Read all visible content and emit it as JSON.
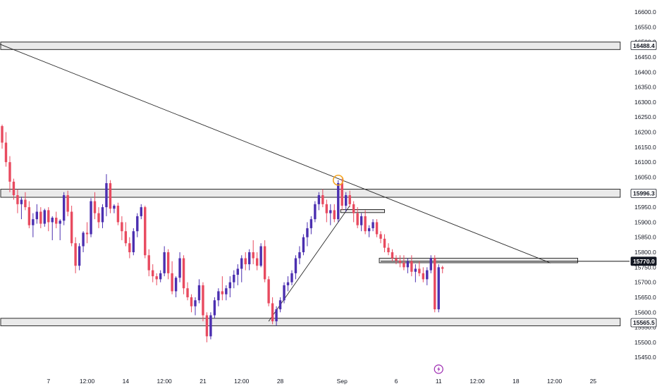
{
  "chart_data": {
    "type": "candlestick",
    "y_axis": {
      "range": [
        15420,
        16640
      ],
      "ticks": [
        "16600.0",
        "16550.0",
        "16500.0",
        "16450.0",
        "16400.0",
        "16350.0",
        "16300.0",
        "16250.0",
        "16200.0",
        "16150.0",
        "16100.0",
        "16050.0",
        "16000.0",
        "15950.0",
        "15900.0",
        "15850.0",
        "15800.0",
        "15750.0",
        "15700.0",
        "15650.0",
        "15600.0",
        "15550.0",
        "15500.0",
        "15450.0"
      ]
    },
    "x_axis": {
      "labels": [
        {
          "text": "7",
          "i": 12
        },
        {
          "text": "12:00",
          "i": 22
        },
        {
          "text": "14",
          "i": 32
        },
        {
          "text": "12:00",
          "i": 42
        },
        {
          "text": "21",
          "i": 52
        },
        {
          "text": "12:00",
          "i": 62
        },
        {
          "text": "28",
          "i": 72
        },
        {
          "text": "Sep",
          "i": 88
        },
        {
          "text": "6",
          "i": 102
        },
        {
          "text": "11",
          "i": 113
        },
        {
          "text": "12:00",
          "i": 123
        },
        {
          "text": "18",
          "i": 133
        },
        {
          "text": "12:00",
          "i": 143
        },
        {
          "text": "25",
          "i": 153
        }
      ]
    },
    "price_tags": [
      {
        "label": "16488.4",
        "value": 16488.4,
        "style": "light"
      },
      {
        "label": "15996.3",
        "value": 15996.3,
        "style": "light"
      },
      {
        "label": "15770.0",
        "value": 15770.0,
        "style": "dark"
      },
      {
        "label": "15565.5",
        "value": 15565.5,
        "style": "light"
      }
    ],
    "zones": [
      {
        "name": "zone-16488",
        "top": 16500,
        "bottom": 16475,
        "i_start": 0,
        "i_end": 160
      },
      {
        "name": "zone-15996",
        "top": 16010,
        "bottom": 15983,
        "i_start": 0,
        "i_end": 160
      },
      {
        "name": "zone-15570",
        "top": 15580,
        "bottom": 15555,
        "i_start": 0,
        "i_end": 160
      },
      {
        "name": "zone-15770",
        "top": 15780,
        "bottom": 15765,
        "i_start": 98,
        "i_end": 149
      },
      {
        "name": "zone-15940",
        "top": 15942,
        "bottom": 15932,
        "i_start": 88,
        "i_end": 99
      }
    ],
    "trendlines": [
      {
        "name": "downtrend-line",
        "from": [
          -1,
          16495
        ],
        "to": [
          142,
          15764
        ]
      },
      {
        "name": "rising-line",
        "from": [
          69,
          15570
        ],
        "to": [
          90,
          15955
        ]
      }
    ],
    "hline": {
      "value": 15770.0,
      "i_start": 98
    },
    "marker": {
      "i": 87,
      "value": 16040
    },
    "candles": [
      [
        16220,
        16225,
        16145,
        16165
      ],
      [
        16165,
        16200,
        16085,
        16100
      ],
      [
        16100,
        16120,
        16000,
        16035
      ],
      [
        16035,
        16045,
        15975,
        15990
      ],
      [
        15990,
        16010,
        15930,
        15960
      ],
      [
        15960,
        15985,
        15910,
        15975
      ],
      [
        15975,
        16000,
        15940,
        15950
      ],
      [
        15950,
        15970,
        15880,
        15890
      ],
      [
        15890,
        15930,
        15850,
        15910
      ],
      [
        15910,
        15960,
        15895,
        15935
      ],
      [
        15935,
        15950,
        15880,
        15895
      ],
      [
        15895,
        15945,
        15885,
        15940
      ],
      [
        15940,
        15950,
        15870,
        15900
      ],
      [
        15900,
        15920,
        15840,
        15915
      ],
      [
        15915,
        15935,
        15880,
        15895
      ],
      [
        15895,
        15910,
        15840,
        15905
      ],
      [
        15905,
        16000,
        15890,
        15990
      ],
      [
        15990,
        16005,
        15920,
        15935
      ],
      [
        15935,
        15955,
        15820,
        15830
      ],
      [
        15830,
        15850,
        15730,
        15755
      ],
      [
        15755,
        15830,
        15740,
        15820
      ],
      [
        15820,
        15870,
        15800,
        15865
      ],
      [
        15865,
        15900,
        15830,
        15860
      ],
      [
        15860,
        15980,
        15850,
        15970
      ],
      [
        15970,
        16000,
        15910,
        15930
      ],
      [
        15930,
        15950,
        15880,
        15900
      ],
      [
        15900,
        15960,
        15880,
        15950
      ],
      [
        15950,
        16060,
        15920,
        16030
      ],
      [
        16030,
        16040,
        15930,
        15945
      ],
      [
        15945,
        15960,
        15930,
        15955
      ],
      [
        15955,
        15965,
        15890,
        15900
      ],
      [
        15900,
        15920,
        15840,
        15870
      ],
      [
        15870,
        15900,
        15820,
        15830
      ],
      [
        15830,
        15850,
        15780,
        15800
      ],
      [
        15800,
        15880,
        15790,
        15870
      ],
      [
        15870,
        15930,
        15850,
        15920
      ],
      [
        15920,
        15960,
        15910,
        15950
      ],
      [
        15950,
        15955,
        15780,
        15790
      ],
      [
        15790,
        15810,
        15720,
        15740
      ],
      [
        15740,
        15760,
        15700,
        15720
      ],
      [
        15720,
        15730,
        15690,
        15710
      ],
      [
        15710,
        15740,
        15700,
        15730
      ],
      [
        15730,
        15820,
        15720,
        15800
      ],
      [
        15800,
        15810,
        15710,
        15730
      ],
      [
        15730,
        15770,
        15660,
        15670
      ],
      [
        15670,
        15720,
        15650,
        15715
      ],
      [
        15715,
        15800,
        15700,
        15780
      ],
      [
        15780,
        15790,
        15660,
        15680
      ],
      [
        15680,
        15700,
        15640,
        15650
      ],
      [
        15650,
        15660,
        15600,
        15620
      ],
      [
        15620,
        15650,
        15590,
        15640
      ],
      [
        15640,
        15710,
        15630,
        15690
      ],
      [
        15690,
        15700,
        15570,
        15590
      ],
      [
        15590,
        15600,
        15500,
        15520
      ],
      [
        15520,
        15600,
        15510,
        15590
      ],
      [
        15590,
        15650,
        15580,
        15640
      ],
      [
        15640,
        15680,
        15620,
        15670
      ],
      [
        15670,
        15720,
        15640,
        15660
      ],
      [
        15660,
        15690,
        15640,
        15680
      ],
      [
        15680,
        15720,
        15650,
        15700
      ],
      [
        15700,
        15740,
        15680,
        15725
      ],
      [
        15725,
        15760,
        15690,
        15745
      ],
      [
        15745,
        15790,
        15700,
        15780
      ],
      [
        15780,
        15800,
        15740,
        15760
      ],
      [
        15760,
        15810,
        15740,
        15800
      ],
      [
        15800,
        15840,
        15760,
        15780
      ],
      [
        15780,
        15800,
        15740,
        15755
      ],
      [
        15755,
        15830,
        15750,
        15820
      ],
      [
        15820,
        15840,
        15700,
        15710
      ],
      [
        15710,
        15720,
        15620,
        15630
      ],
      [
        15630,
        15650,
        15560,
        15570
      ],
      [
        15570,
        15620,
        15555,
        15610
      ],
      [
        15610,
        15650,
        15600,
        15640
      ],
      [
        15640,
        15700,
        15630,
        15690
      ],
      [
        15690,
        15720,
        15670,
        15700
      ],
      [
        15700,
        15740,
        15690,
        15730
      ],
      [
        15730,
        15790,
        15710,
        15780
      ],
      [
        15780,
        15820,
        15760,
        15800
      ],
      [
        15800,
        15860,
        15790,
        15850
      ],
      [
        15850,
        15900,
        15820,
        15880
      ],
      [
        15880,
        15920,
        15860,
        15910
      ],
      [
        15910,
        15970,
        15900,
        15960
      ],
      [
        15960,
        16000,
        15940,
        15990
      ],
      [
        15990,
        16010,
        15950,
        15960
      ],
      [
        15960,
        15975,
        15900,
        15930
      ],
      [
        15930,
        15960,
        15890,
        15940
      ],
      [
        15940,
        15960,
        15900,
        15910
      ],
      [
        15910,
        16040,
        15900,
        16030
      ],
      [
        16030,
        16045,
        15940,
        15955
      ],
      [
        15955,
        16000,
        15935,
        15990
      ],
      [
        15990,
        16005,
        15950,
        15960
      ],
      [
        15960,
        15970,
        15900,
        15930
      ],
      [
        15930,
        15950,
        15880,
        15890
      ],
      [
        15890,
        15930,
        15870,
        15920
      ],
      [
        15920,
        15940,
        15860,
        15870
      ],
      [
        15870,
        15890,
        15850,
        15880
      ],
      [
        15880,
        15910,
        15870,
        15900
      ],
      [
        15900,
        15910,
        15850,
        15860
      ],
      [
        15860,
        15870,
        15830,
        15845
      ],
      [
        15845,
        15860,
        15800,
        15815
      ],
      [
        15815,
        15830,
        15790,
        15800
      ],
      [
        15800,
        15810,
        15770,
        15780
      ],
      [
        15780,
        15790,
        15760,
        15772
      ],
      [
        15772,
        15790,
        15750,
        15765
      ],
      [
        15765,
        15790,
        15740,
        15750
      ],
      [
        15750,
        15780,
        15730,
        15770
      ],
      [
        15770,
        15790,
        15720,
        15735
      ],
      [
        15735,
        15760,
        15700,
        15745
      ],
      [
        15745,
        15770,
        15720,
        15730
      ],
      [
        15730,
        15750,
        15700,
        15710
      ],
      [
        15710,
        15750,
        15690,
        15740
      ],
      [
        15740,
        15790,
        15730,
        15780
      ],
      [
        15780,
        15790,
        15600,
        15610
      ],
      [
        15610,
        15760,
        15600,
        15750
      ],
      [
        15750,
        15755,
        15730,
        15745
      ]
    ]
  }
}
